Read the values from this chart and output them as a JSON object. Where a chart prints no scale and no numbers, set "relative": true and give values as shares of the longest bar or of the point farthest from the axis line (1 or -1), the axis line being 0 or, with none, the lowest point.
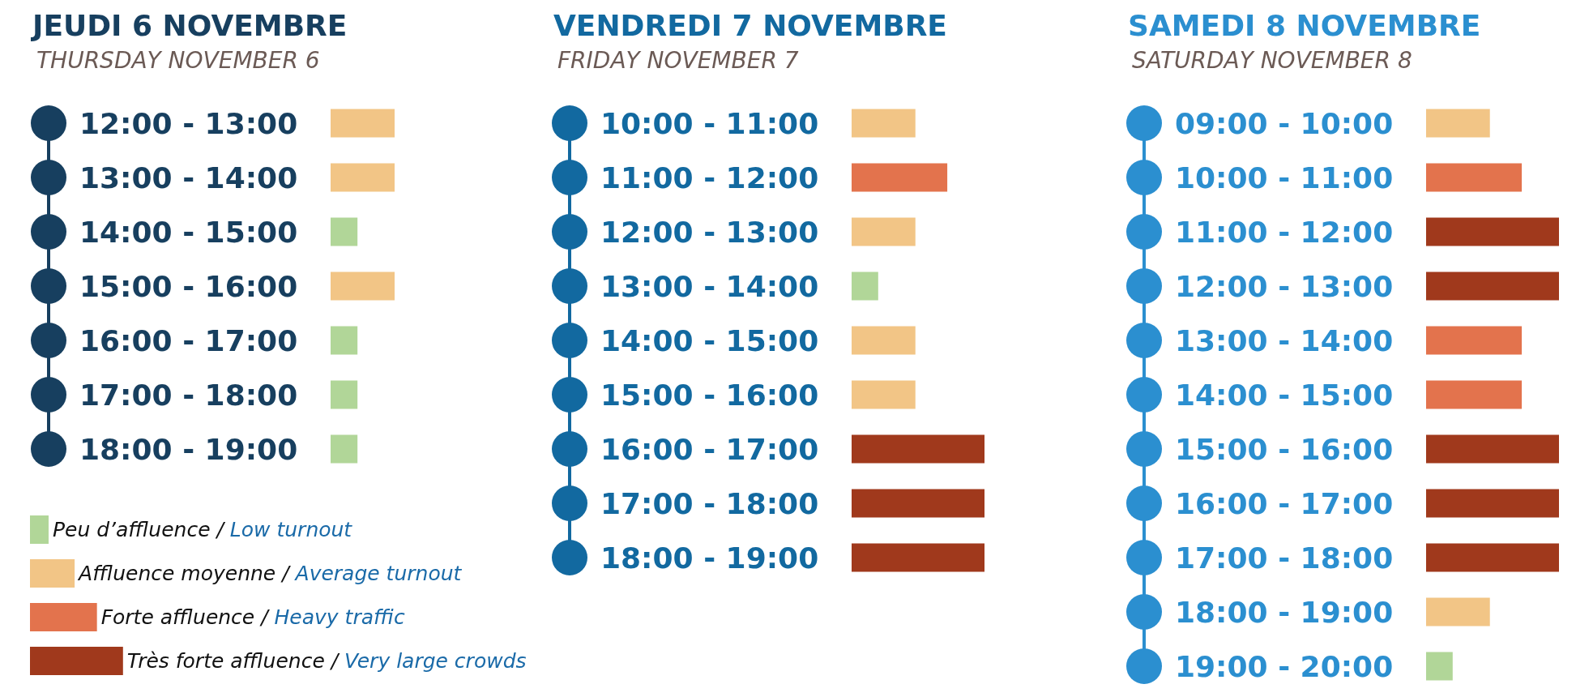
{
  "chart_data": [
    {
      "type": "bar",
      "orientation": "horizontal",
      "relative": true,
      "stacked": true,
      "title": "JEUDI 6 NOVEMBRE",
      "subtitle": "THURSDAY NOVEMBER 6",
      "categories": [
        "12:00 - 13:00",
        "13:00 - 14:00",
        "14:00 - 15:00",
        "15:00 - 16:00",
        "16:00 - 17:00",
        "17:00 - 18:00",
        "18:00 - 19:00"
      ],
      "series": [
        {
          "color": "#b1d698",
          "values": [
            null,
            null,
            0.42,
            null,
            0.42,
            0.42,
            0.42
          ]
        },
        {
          "color": "#f2c586",
          "values": [
            1,
            1,
            null,
            1,
            null,
            null,
            null
          ]
        }
      ]
    },
    {
      "type": "bar",
      "orientation": "horizontal",
      "relative": true,
      "stacked": true,
      "legend": "bottom left",
      "title": "VENDREDI 7 NOVEMBRE",
      "subtitle": "FRIDAY NOVEMBER 7",
      "categories": [
        "10:00 - 11:00",
        "11:00 - 12:00",
        "12:00 - 13:00",
        "13:00 - 14:00",
        "14:00 - 15:00",
        "15:00 - 16:00",
        "16:00 - 17:00",
        "17:00 - 18:00",
        "18:00 - 19:00"
      ],
      "series": [
        {
          "name": "Peu d’affluence / Low turnout",
          "color": "#b1d698",
          "values": [
            null,
            null,
            null,
            0.2,
            null,
            null,
            null,
            null,
            null
          ]
        },
        {
          "name": "Affluence moyenne / Average turnout",
          "color": "#f2c586",
          "values": [
            0.48,
            null,
            0.48,
            null,
            0.48,
            0.48,
            null,
            null,
            null
          ]
        },
        {
          "name": "Forte affluence / Heavy traffic",
          "color": "#e3734d",
          "values": [
            null,
            0.72,
            null,
            null,
            null,
            null,
            null,
            null,
            null
          ]
        },
        {
          "name": "Très forte affluence / Very large crowds",
          "color": "#a0391c",
          "values": [
            null,
            null,
            null,
            null,
            null,
            null,
            1,
            1,
            1
          ]
        }
      ]
    },
    {
      "type": "bar",
      "orientation": "horizontal",
      "relative": true,
      "stacked": true,
      "title": "SAMEDI 8 NOVEMBRE",
      "subtitle": "SATURDAY NOVEMBER 8",
      "categories": [
        "09:00 - 10:00",
        "10:00 - 11:00",
        "11:00 - 12:00",
        "12:00 - 13:00",
        "13:00 - 14:00",
        "14:00 - 15:00",
        "15:00 - 16:00",
        "16:00 - 17:00",
        "17:00 - 18:00",
        "18:00 - 19:00",
        "19:00 - 20:00"
      ],
      "series": [
        {
          "color": "#b1d698",
          "values": [
            null,
            null,
            null,
            null,
            null,
            null,
            null,
            null,
            null,
            null,
            0.2
          ]
        },
        {
          "color": "#f2c586",
          "values": [
            0.48,
            null,
            null,
            null,
            null,
            null,
            null,
            null,
            null,
            0.48,
            null
          ]
        },
        {
          "color": "#e3734d",
          "values": [
            null,
            0.72,
            null,
            null,
            0.72,
            0.72,
            null,
            null,
            null,
            null,
            null
          ]
        },
        {
          "color": "#a0391c",
          "values": [
            null,
            null,
            1,
            1,
            null,
            null,
            1,
            1,
            1,
            null,
            null
          ]
        }
      ]
    }
  ]
}
